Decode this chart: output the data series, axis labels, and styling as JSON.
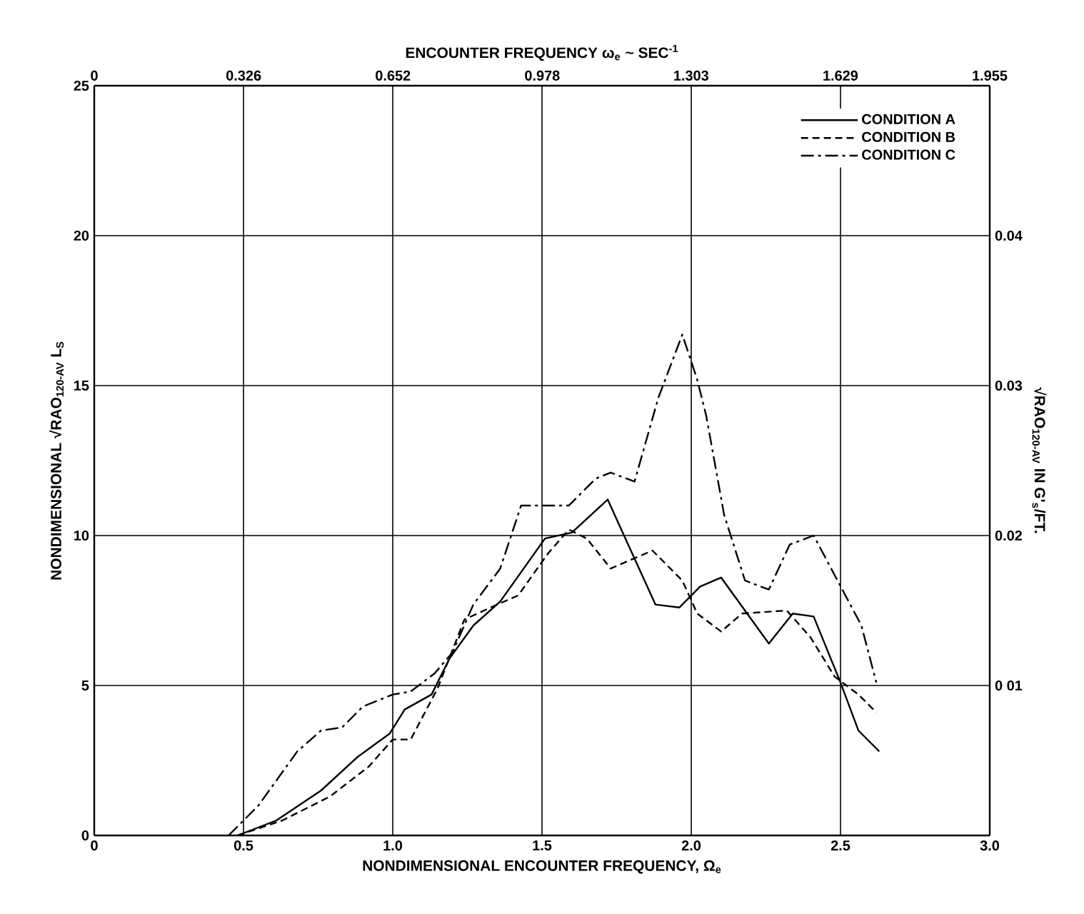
{
  "chart_data": {
    "type": "line",
    "xlabel": "NONDIMENSIONAL ENCOUNTER FREQUENCY, Ω$_{e}$",
    "ylabel": "NONDIMENSIONAL √RAO$_{120-AV}$  L$_{S}$",
    "y2label": "√RAO$_{120-AV}$  IN G'$_{s}$/FT.",
    "x2label": "ENCOUNTER FREQUENCY ω$_{e}$ ~ SEC$^{-1}$",
    "xlim": [
      0,
      3
    ],
    "xticks": [
      0,
      0.5,
      {
        "value": 1,
        "label": "1.0"
      },
      1.5,
      {
        "value": 2,
        "label": "2.0"
      },
      2.5,
      {
        "value": 3,
        "label": "3.0"
      }
    ],
    "ylim": [
      0,
      25
    ],
    "yticks": [
      0,
      5,
      10,
      15,
      20,
      25
    ],
    "y2lim": [
      0,
      0.05
    ],
    "y2ticks": [
      {
        "value": 0.01,
        "label": "0 01"
      },
      0.02,
      0.03,
      0.04
    ],
    "x2lim": [
      0,
      1.955
    ],
    "x2ticks": [
      0,
      0.326,
      0.652,
      0.978,
      1.303,
      1.629,
      1.955
    ],
    "grid": true,
    "legend": "top right",
    "marker": "none",
    "series": [
      {
        "name": "CONDITION A",
        "color": "#000000",
        "line_style": "solid",
        "x": [
          0.48,
          0.61,
          0.76,
          0.88,
          0.99,
          1.04,
          1.13,
          1.19,
          1.27,
          1.36,
          1.51,
          1.6,
          1.72,
          1.88,
          1.96,
          2.03,
          2.1,
          2.26,
          2.34,
          2.41,
          2.5,
          2.56,
          2.63
        ],
        "values": [
          0,
          0.5,
          1.5,
          2.6,
          3.4,
          4.2,
          4.7,
          5.9,
          7.0,
          7.8,
          9.9,
          10.1,
          11.2,
          7.7,
          7.6,
          8.3,
          8.6,
          6.4,
          7.4,
          7.3,
          5.1,
          3.5,
          2.8
        ]
      },
      {
        "name": "CONDITION B",
        "color": "#000000",
        "line_style": "dashed",
        "x": [
          0.48,
          0.63,
          0.79,
          0.92,
          1.0,
          1.06,
          1.15,
          1.24,
          1.35,
          1.42,
          1.52,
          1.59,
          1.65,
          1.73,
          1.87,
          1.97,
          2.02,
          2.1,
          2.17,
          2.32,
          2.4,
          2.48,
          2.56,
          2.62
        ],
        "values": [
          0,
          0.5,
          1.3,
          2.3,
          3.2,
          3.2,
          4.9,
          7.2,
          7.7,
          8.0,
          9.4,
          10.2,
          9.9,
          8.9,
          9.5,
          8.5,
          7.4,
          6.8,
          7.4,
          7.5,
          6.6,
          5.3,
          4.7,
          4.1
        ]
      },
      {
        "name": "CONDITION C",
        "color": "#000000",
        "line_style": "dashdot",
        "x": [
          0.45,
          0.55,
          0.68,
          0.76,
          0.83,
          0.9,
          1.0,
          1.06,
          1.14,
          1.2,
          1.27,
          1.36,
          1.43,
          1.59,
          1.68,
          1.73,
          1.81,
          1.89,
          1.97,
          2.02,
          2.05,
          2.11,
          2.18,
          2.26,
          2.33,
          2.41,
          2.49,
          2.57,
          2.62
        ],
        "values": [
          0,
          1.0,
          2.8,
          3.5,
          3.6,
          4.3,
          4.7,
          4.8,
          5.4,
          6.1,
          7.7,
          8.9,
          11.0,
          11.0,
          11.9,
          12.1,
          11.8,
          14.6,
          16.7,
          15.2,
          14.0,
          10.7,
          8.5,
          8.2,
          9.7,
          10.0,
          8.5,
          7.0,
          5.1
        ]
      }
    ]
  }
}
